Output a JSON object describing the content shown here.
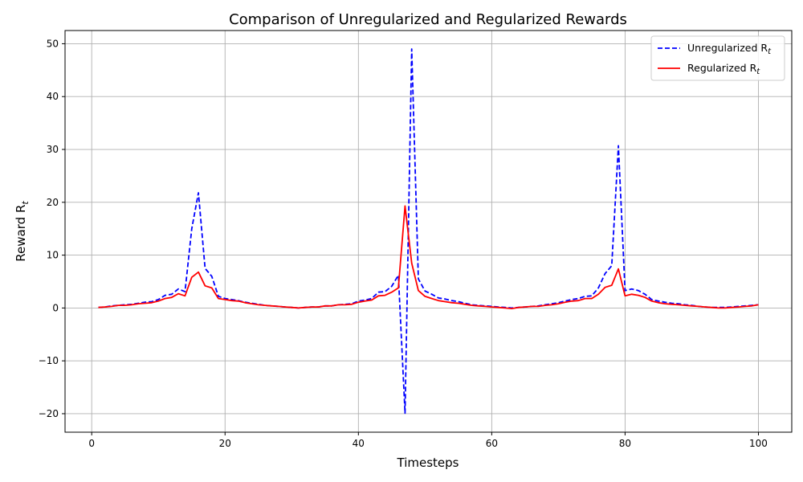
{
  "chart_data": {
    "type": "line",
    "title": "Comparison of Unregularized and Regularized Rewards",
    "xlabel": "Timesteps",
    "ylabel": "Reward R",
    "ylabel_sub": "t",
    "xlim": [
      -4,
      105
    ],
    "ylim": [
      -23.5,
      52.5
    ],
    "xticks": [
      0,
      20,
      40,
      60,
      80,
      100
    ],
    "yticks": [
      -20,
      -10,
      0,
      10,
      20,
      30,
      40,
      50
    ],
    "grid": true,
    "legend_position": "top-right",
    "series": [
      {
        "name": "Unregularized R",
        "name_sub": "t",
        "color": "#0000ff",
        "style": "dashed",
        "x": [
          1,
          2,
          3,
          4,
          5,
          6,
          7,
          8,
          9,
          10,
          11,
          12,
          13,
          14,
          15,
          16,
          17,
          18,
          19,
          20,
          21,
          22,
          23,
          24,
          25,
          26,
          27,
          28,
          29,
          30,
          31,
          32,
          33,
          34,
          35,
          36,
          37,
          38,
          39,
          40,
          41,
          42,
          43,
          44,
          45,
          46,
          47,
          48,
          49,
          50,
          51,
          52,
          53,
          54,
          55,
          56,
          57,
          58,
          59,
          60,
          61,
          62,
          63,
          64,
          65,
          66,
          67,
          68,
          69,
          70,
          71,
          72,
          73,
          74,
          75,
          76,
          77,
          78,
          79,
          80,
          81,
          82,
          83,
          84,
          85,
          86,
          87,
          88,
          89,
          90,
          91,
          92,
          93,
          94,
          95,
          96,
          97,
          98,
          99,
          100
        ],
        "values": [
          0.1,
          0.2,
          0.4,
          0.5,
          0.6,
          0.7,
          0.9,
          1.1,
          1.2,
          1.6,
          2.4,
          2.6,
          3.6,
          3.1,
          15.0,
          21.8,
          7.5,
          6.0,
          2.2,
          1.8,
          1.6,
          1.4,
          1.1,
          0.9,
          0.7,
          0.5,
          0.4,
          0.3,
          0.2,
          0.1,
          0.0,
          0.1,
          0.2,
          0.2,
          0.4,
          0.4,
          0.6,
          0.7,
          0.8,
          1.3,
          1.5,
          1.8,
          3.0,
          3.1,
          4.1,
          6.2,
          -19.9,
          49.0,
          5.5,
          3.2,
          2.6,
          1.9,
          1.7,
          1.4,
          1.2,
          0.9,
          0.6,
          0.5,
          0.4,
          0.3,
          0.2,
          0.1,
          0.0,
          0.1,
          0.2,
          0.3,
          0.4,
          0.6,
          0.8,
          1.0,
          1.3,
          1.6,
          1.8,
          2.2,
          2.3,
          3.8,
          6.5,
          8.0,
          30.7,
          3.3,
          3.6,
          3.3,
          2.6,
          1.6,
          1.3,
          1.1,
          0.9,
          0.8,
          0.6,
          0.5,
          0.3,
          0.2,
          0.1,
          0.1,
          0.1,
          0.2,
          0.3,
          0.4,
          0.5,
          0.6
        ]
      },
      {
        "name": "Regularized R",
        "name_sub": "t",
        "color": "#ff0000",
        "style": "solid",
        "x": [
          1,
          2,
          3,
          4,
          5,
          6,
          7,
          8,
          9,
          10,
          11,
          12,
          13,
          14,
          15,
          16,
          17,
          18,
          19,
          20,
          21,
          22,
          23,
          24,
          25,
          26,
          27,
          28,
          29,
          30,
          31,
          32,
          33,
          34,
          35,
          36,
          37,
          38,
          39,
          40,
          41,
          42,
          43,
          44,
          45,
          46,
          47,
          48,
          49,
          50,
          51,
          52,
          53,
          54,
          55,
          56,
          57,
          58,
          59,
          60,
          61,
          62,
          63,
          64,
          65,
          66,
          67,
          68,
          69,
          70,
          71,
          72,
          73,
          74,
          75,
          76,
          77,
          78,
          79,
          80,
          81,
          82,
          83,
          84,
          85,
          86,
          87,
          88,
          89,
          90,
          91,
          92,
          93,
          94,
          95,
          96,
          97,
          98,
          99,
          100
        ],
        "values": [
          0.1,
          0.2,
          0.3,
          0.5,
          0.5,
          0.6,
          0.8,
          0.9,
          1.0,
          1.3,
          1.8,
          2.0,
          2.7,
          2.3,
          5.8,
          6.8,
          4.2,
          3.8,
          1.8,
          1.6,
          1.4,
          1.3,
          1.0,
          0.8,
          0.6,
          0.5,
          0.4,
          0.3,
          0.2,
          0.1,
          0.0,
          0.1,
          0.2,
          0.2,
          0.4,
          0.4,
          0.6,
          0.6,
          0.7,
          1.1,
          1.3,
          1.5,
          2.3,
          2.4,
          3.0,
          3.8,
          19.3,
          8.5,
          3.3,
          2.2,
          1.8,
          1.4,
          1.2,
          1.0,
          0.9,
          0.7,
          0.5,
          0.4,
          0.3,
          0.2,
          0.1,
          0.0,
          -0.1,
          0.1,
          0.2,
          0.3,
          0.3,
          0.5,
          0.6,
          0.8,
          1.1,
          1.3,
          1.4,
          1.8,
          1.8,
          2.6,
          3.9,
          4.3,
          7.4,
          2.3,
          2.6,
          2.4,
          2.0,
          1.3,
          1.0,
          0.8,
          0.7,
          0.6,
          0.5,
          0.4,
          0.3,
          0.2,
          0.1,
          0.0,
          0.0,
          0.1,
          0.2,
          0.3,
          0.4,
          0.6
        ]
      }
    ]
  }
}
